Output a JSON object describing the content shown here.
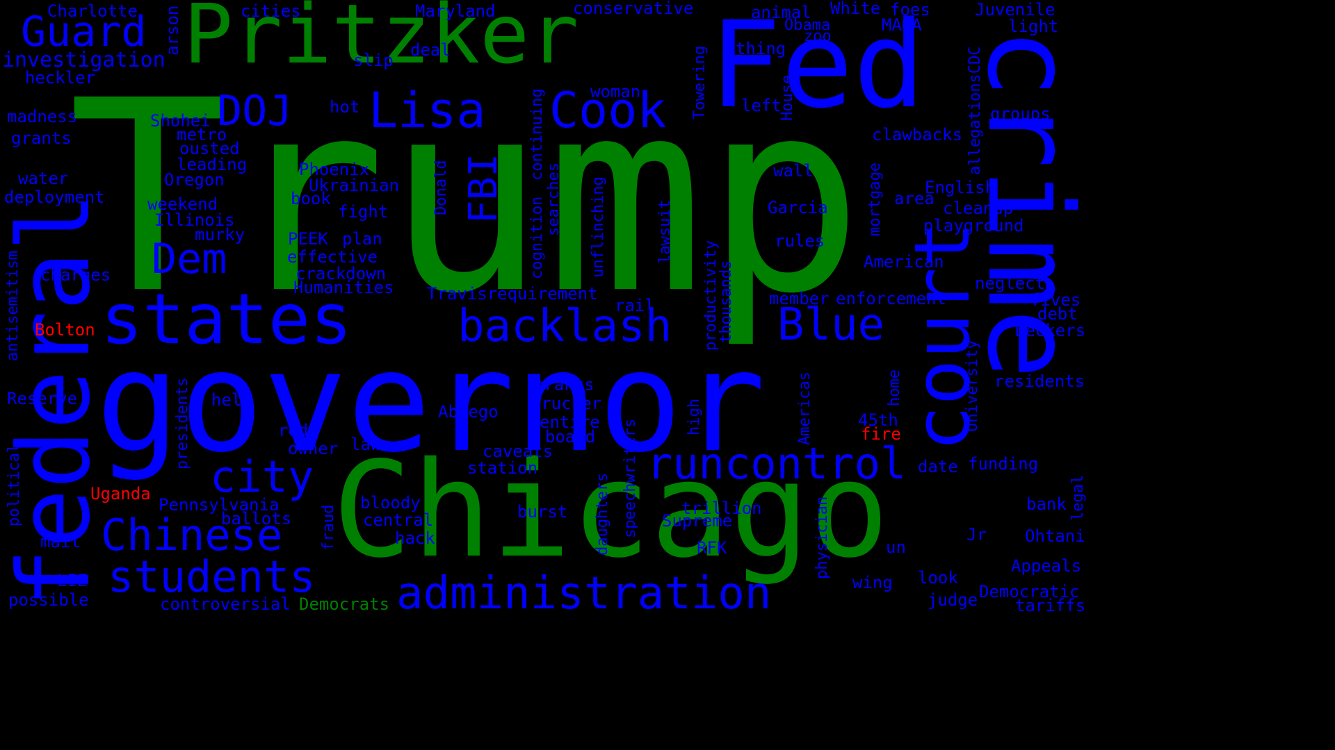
{
  "colors": {
    "background": "#000000",
    "green": "#008000",
    "blue": "#0000ff",
    "red": "#ff0000"
  },
  "words": [
    {
      "text": "Trump",
      "color": "green"
    },
    {
      "text": "governor",
      "color": "blue"
    },
    {
      "text": "Chicago",
      "color": "green"
    },
    {
      "text": "Pritzker",
      "color": "green"
    },
    {
      "text": "Fed",
      "color": "blue"
    },
    {
      "text": "crime",
      "color": "blue"
    },
    {
      "text": "federal",
      "color": "blue"
    },
    {
      "text": "court",
      "color": "blue"
    },
    {
      "text": "states",
      "color": "blue"
    },
    {
      "text": "administration",
      "color": "blue"
    },
    {
      "text": "runcontrol",
      "color": "blue"
    },
    {
      "text": "Chinese",
      "color": "blue"
    },
    {
      "text": "students",
      "color": "blue"
    },
    {
      "text": "backlash",
      "color": "blue"
    },
    {
      "text": "Lisa",
      "color": "blue"
    },
    {
      "text": "Cook",
      "color": "blue"
    },
    {
      "text": "Guard",
      "color": "blue"
    },
    {
      "text": "city",
      "color": "blue"
    },
    {
      "text": "Blue",
      "color": "blue"
    },
    {
      "text": "Dem",
      "color": "blue"
    },
    {
      "text": "DOJ",
      "color": "blue"
    },
    {
      "text": "FBI",
      "color": "blue"
    },
    {
      "text": "investigation",
      "color": "blue"
    },
    {
      "text": "Charlotte",
      "color": "blue"
    },
    {
      "text": "arson",
      "color": "blue"
    },
    {
      "text": "cities",
      "color": "blue"
    },
    {
      "text": "Maryland",
      "color": "blue"
    },
    {
      "text": "conservative",
      "color": "blue"
    },
    {
      "text": "animal",
      "color": "blue"
    },
    {
      "text": "White",
      "color": "blue"
    },
    {
      "text": "foes",
      "color": "blue"
    },
    {
      "text": "Juvenile",
      "color": "blue"
    },
    {
      "text": "Obama",
      "color": "blue"
    },
    {
      "text": "zoo",
      "color": "blue"
    },
    {
      "text": "MAGA",
      "color": "blue"
    },
    {
      "text": "light",
      "color": "blue"
    },
    {
      "text": "thing",
      "color": "blue"
    },
    {
      "text": "deal",
      "color": "blue"
    },
    {
      "text": "slip",
      "color": "blue"
    },
    {
      "text": "heckler",
      "color": "blue"
    },
    {
      "text": "Towering",
      "color": "blue"
    },
    {
      "text": "House",
      "color": "blue"
    },
    {
      "text": "allegationsCDC",
      "color": "blue"
    },
    {
      "text": "woman",
      "color": "blue"
    },
    {
      "text": "left",
      "color": "blue"
    },
    {
      "text": "hot",
      "color": "blue"
    },
    {
      "text": "madness",
      "color": "blue"
    },
    {
      "text": "Shohei",
      "color": "blue"
    },
    {
      "text": "metro",
      "color": "blue"
    },
    {
      "text": "groups",
      "color": "blue"
    },
    {
      "text": "clawbacks",
      "color": "blue"
    },
    {
      "text": "grants",
      "color": "blue"
    },
    {
      "text": "ousted",
      "color": "blue"
    },
    {
      "text": "leading",
      "color": "blue"
    },
    {
      "text": "Oregon",
      "color": "blue"
    },
    {
      "text": "Phoenix",
      "color": "blue"
    },
    {
      "text": "Ukrainian",
      "color": "blue"
    },
    {
      "text": "wall",
      "color": "blue"
    },
    {
      "text": "water",
      "color": "blue"
    },
    {
      "text": "deployment",
      "color": "blue"
    },
    {
      "text": "weekend",
      "color": "blue"
    },
    {
      "text": "book",
      "color": "blue"
    },
    {
      "text": "fight",
      "color": "blue"
    },
    {
      "text": "Illinois",
      "color": "blue"
    },
    {
      "text": "murky",
      "color": "blue"
    },
    {
      "text": "English",
      "color": "blue"
    },
    {
      "text": "area",
      "color": "blue"
    },
    {
      "text": "cleanup",
      "color": "blue"
    },
    {
      "text": "playground",
      "color": "blue"
    },
    {
      "text": "Garcia",
      "color": "blue"
    },
    {
      "text": "PEEK",
      "color": "blue"
    },
    {
      "text": "plan",
      "color": "blue"
    },
    {
      "text": "effective",
      "color": "blue"
    },
    {
      "text": "crackdown",
      "color": "blue"
    },
    {
      "text": "rules",
      "color": "blue"
    },
    {
      "text": "American",
      "color": "blue"
    },
    {
      "text": "charges",
      "color": "blue"
    },
    {
      "text": "Humanities",
      "color": "blue"
    },
    {
      "text": "Travisrequirement",
      "color": "blue"
    },
    {
      "text": "neglect",
      "color": "blue"
    },
    {
      "text": "member",
      "color": "blue"
    },
    {
      "text": "enforcement",
      "color": "blue"
    },
    {
      "text": "fives",
      "color": "blue"
    },
    {
      "text": "rail",
      "color": "blue"
    },
    {
      "text": "debt",
      "color": "blue"
    },
    {
      "text": "Bolton",
      "color": "red"
    },
    {
      "text": "Deckers",
      "color": "blue"
    },
    {
      "text": "antisemitism",
      "color": "blue"
    },
    {
      "text": "cognition",
      "color": "blue"
    },
    {
      "text": "continuing",
      "color": "blue"
    },
    {
      "text": "searches",
      "color": "blue"
    },
    {
      "text": "unflinching",
      "color": "blue"
    },
    {
      "text": "lawsuit",
      "color": "blue"
    },
    {
      "text": "productivity",
      "color": "blue"
    },
    {
      "text": "thousands",
      "color": "blue"
    },
    {
      "text": "mortgage",
      "color": "blue"
    },
    {
      "text": "Donald",
      "color": "blue"
    },
    {
      "text": "residents",
      "color": "blue"
    },
    {
      "text": "pranks",
      "color": "blue"
    },
    {
      "text": "trucker",
      "color": "blue"
    },
    {
      "text": "Reserve",
      "color": "blue"
    },
    {
      "text": "help",
      "color": "blue"
    },
    {
      "text": "Abrego",
      "color": "blue"
    },
    {
      "text": "entire",
      "color": "blue"
    },
    {
      "text": "board",
      "color": "blue"
    },
    {
      "text": "45th",
      "color": "blue"
    },
    {
      "text": "fire",
      "color": "red"
    },
    {
      "text": "red",
      "color": "blue"
    },
    {
      "text": "owner",
      "color": "blue"
    },
    {
      "text": "law",
      "color": "blue"
    },
    {
      "text": "caveats",
      "color": "blue"
    },
    {
      "text": "station",
      "color": "blue"
    },
    {
      "text": "date",
      "color": "blue"
    },
    {
      "text": "funding",
      "color": "blue"
    },
    {
      "text": "Uganda",
      "color": "red"
    },
    {
      "text": "Pennsylvania",
      "color": "blue"
    },
    {
      "text": "bloody",
      "color": "blue"
    },
    {
      "text": "ballots",
      "color": "blue"
    },
    {
      "text": "central",
      "color": "blue"
    },
    {
      "text": "burst",
      "color": "blue"
    },
    {
      "text": "trillion",
      "color": "blue"
    },
    {
      "text": "Supreme",
      "color": "blue"
    },
    {
      "text": "bank",
      "color": "blue"
    },
    {
      "text": "mail",
      "color": "blue"
    },
    {
      "text": "hack",
      "color": "blue"
    },
    {
      "text": "RFK",
      "color": "blue"
    },
    {
      "text": "un",
      "color": "blue"
    },
    {
      "text": "Jr",
      "color": "blue"
    },
    {
      "text": "Ohtani",
      "color": "blue"
    },
    {
      "text": "LIZ",
      "color": "blue"
    },
    {
      "text": "Appeals",
      "color": "blue"
    },
    {
      "text": "look",
      "color": "blue"
    },
    {
      "text": "wing",
      "color": "blue"
    },
    {
      "text": "judge",
      "color": "blue"
    },
    {
      "text": "Democratic",
      "color": "blue"
    },
    {
      "text": "possible",
      "color": "blue"
    },
    {
      "text": "controversial",
      "color": "blue"
    },
    {
      "text": "Democrats",
      "color": "green"
    },
    {
      "text": "tariffs",
      "color": "blue"
    },
    {
      "text": "political",
      "color": "blue"
    },
    {
      "text": "presidents",
      "color": "blue"
    },
    {
      "text": "fraud",
      "color": "blue"
    },
    {
      "text": "daughters",
      "color": "blue"
    },
    {
      "text": "speechwriters",
      "color": "blue"
    },
    {
      "text": "physician",
      "color": "blue"
    },
    {
      "text": "high",
      "color": "blue"
    },
    {
      "text": "Americas",
      "color": "blue"
    },
    {
      "text": "home",
      "color": "blue"
    },
    {
      "text": "University",
      "color": "blue"
    },
    {
      "text": "legal",
      "color": "blue"
    }
  ]
}
